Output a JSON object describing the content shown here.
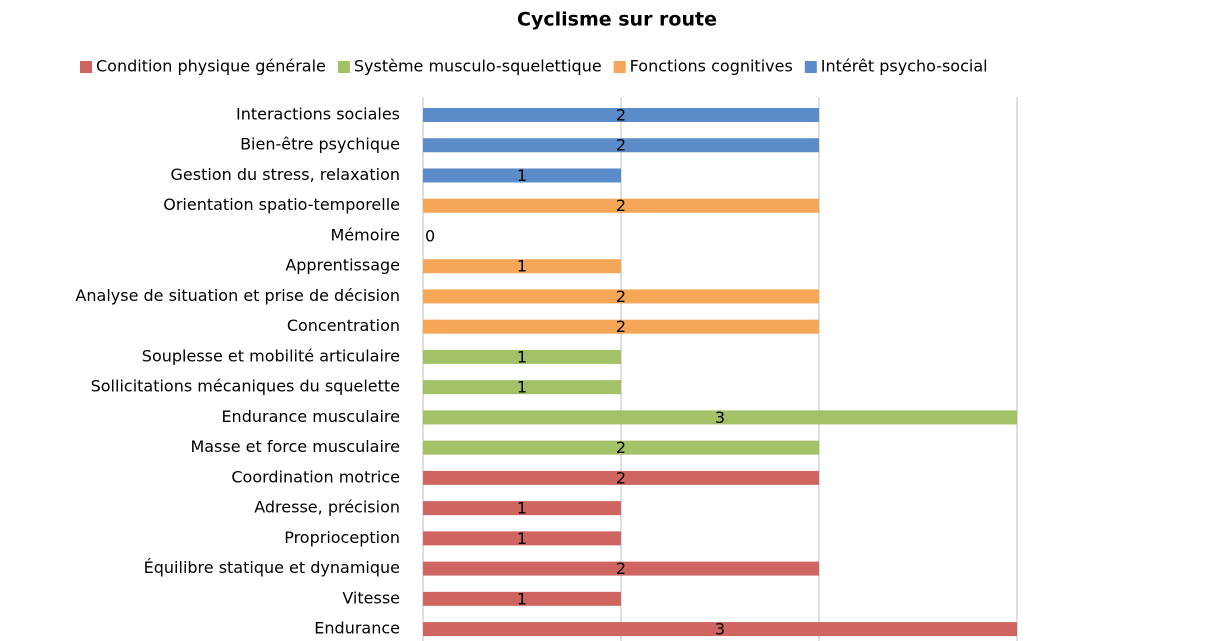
{
  "chart_data": {
    "type": "bar",
    "orientation": "horizontal",
    "title": "Cyclisme sur route",
    "categories": [
      "Interactions sociales",
      "Bien-être psychique",
      "Gestion du stress, relaxation",
      "Orientation spatio-temporelle",
      "Mémoire",
      "Apprentissage",
      "Analyse de situation et prise de décision",
      "Concentration",
      "Souplesse et mobilité articulaire",
      "Sollicitations mécaniques du squelette",
      "Endurance musculaire",
      "Masse et force musculaire",
      "Coordination motrice",
      "Adresse, précision",
      "Proprioception",
      "Équilibre statique et dynamique",
      "Vitesse",
      "Endurance"
    ],
    "series": [
      {
        "name": "Condition physique générale",
        "color": "#cf6560",
        "values": [
          null,
          null,
          null,
          null,
          null,
          null,
          null,
          null,
          null,
          null,
          null,
          null,
          2,
          1,
          1,
          2,
          1,
          3
        ]
      },
      {
        "name": "Système musculo-squelettique",
        "color": "#a3c166",
        "values": [
          null,
          null,
          null,
          null,
          null,
          null,
          null,
          null,
          1,
          1,
          3,
          2,
          null,
          null,
          null,
          null,
          null,
          null
        ]
      },
      {
        "name": "Fonctions cognitives",
        "color": "#f6a657",
        "values": [
          null,
          null,
          null,
          2,
          0,
          1,
          2,
          2,
          null,
          null,
          null,
          null,
          null,
          null,
          null,
          null,
          null,
          null
        ]
      },
      {
        "name": "Intérêt psycho-social",
        "color": "#5b8bc9",
        "values": [
          2,
          2,
          1,
          null,
          null,
          null,
          null,
          null,
          null,
          null,
          null,
          null,
          null,
          null,
          null,
          null,
          null,
          null
        ]
      }
    ],
    "xlim": [
      0,
      3
    ],
    "xticks": [
      0,
      1,
      2,
      3
    ],
    "grid": true,
    "legend": "top"
  }
}
